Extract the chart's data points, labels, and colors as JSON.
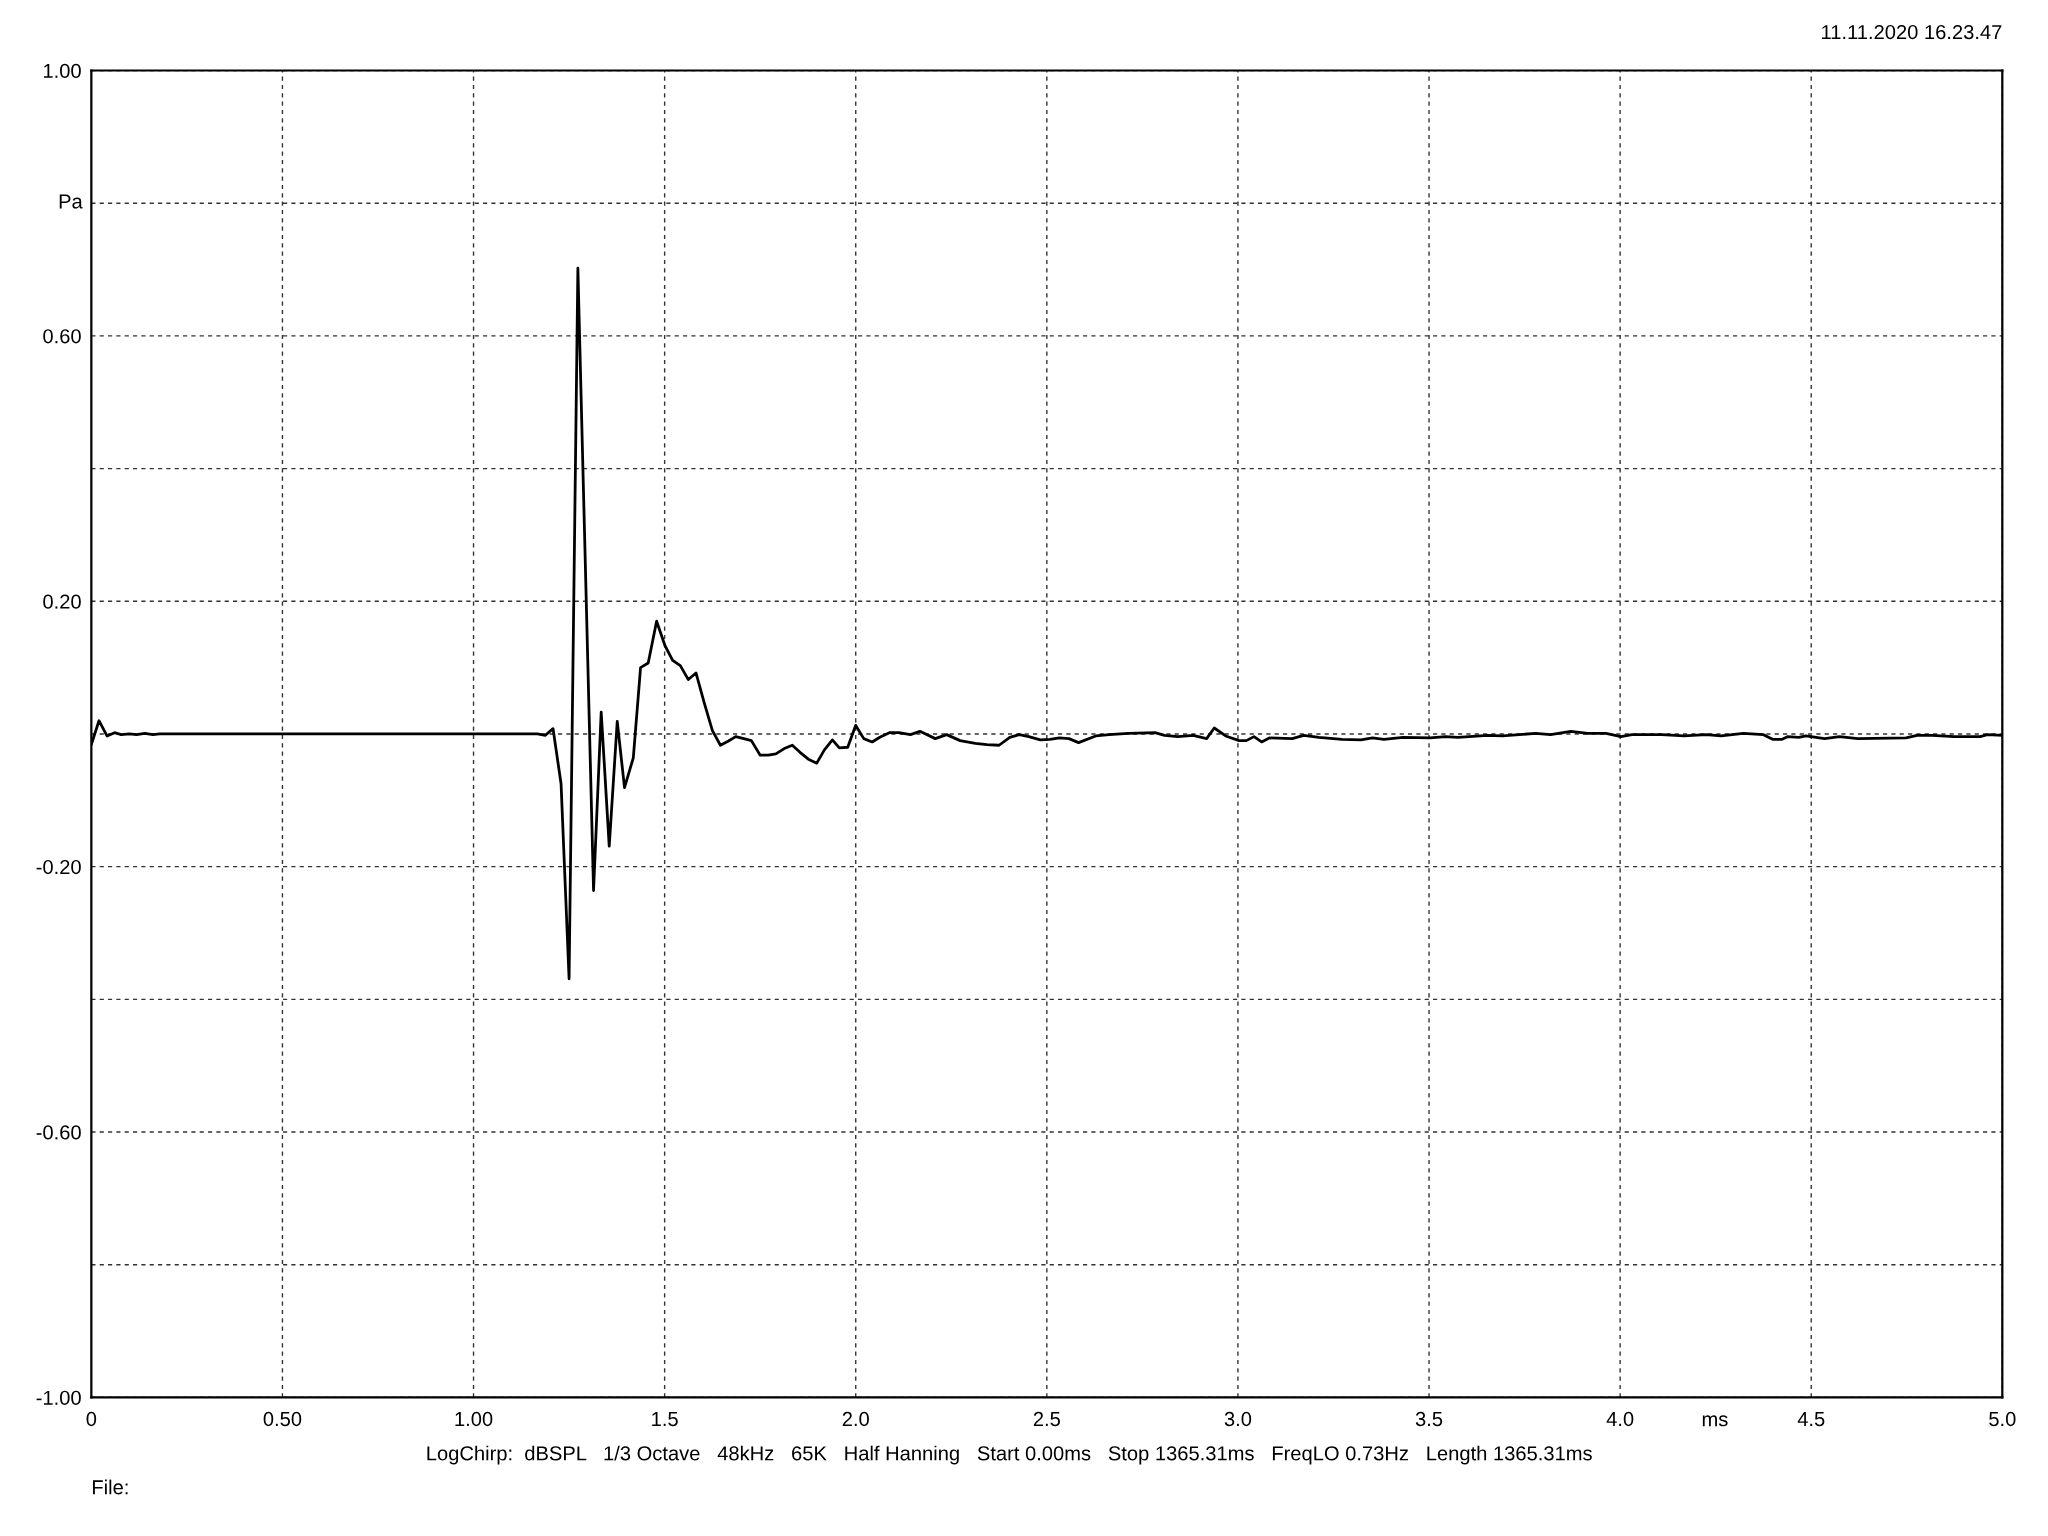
{
  "chart_data": {
    "type": "line",
    "xlabel": "ms",
    "ylabel": "Pa",
    "annotations": [
      "11.11.2020 16.23.47",
      "LogChirp:  dBSPL   1/3 Octave   48kHz   65K   Half Hanning   Start 0.00ms   Stop 1365.31ms   FreqLO 0.73Hz   Length 1365.31ms",
      "File:"
    ],
    "xlim": [
      0,
      5.0
    ],
    "ylim": [
      -1.0,
      1.0
    ],
    "xticks": [
      0,
      {
        "value": 0.5,
        "label": "0.50"
      },
      {
        "value": 1.0,
        "label": "1.00"
      },
      1.5,
      {
        "value": 2.0,
        "label": "2.0"
      },
      2.5,
      {
        "value": 3.0,
        "label": "3.0"
      },
      3.5,
      {
        "value": 4.0,
        "label": "4.0"
      },
      4.5,
      {
        "value": 5.0,
        "label": "5.0"
      }
    ],
    "yticks": [
      {
        "value": 1.0,
        "label": "1.00"
      },
      {
        "value": 0.8,
        "label": null
      },
      {
        "value": 0.6,
        "label": "0.60"
      },
      {
        "value": 0.4,
        "label": null
      },
      {
        "value": 0.2,
        "label": "0.20"
      },
      {
        "value": 0,
        "label": null
      },
      {
        "value": -0.2,
        "label": "-0.20"
      },
      {
        "value": -0.4,
        "label": null
      },
      {
        "value": -0.6,
        "label": "-0.60"
      },
      {
        "value": -0.8,
        "label": null
      },
      {
        "value": -1.0,
        "label": "-1.00"
      }
    ],
    "grid": true,
    "color": "#000000",
    "x": [
      0,
      0.02,
      0.041,
      0.061,
      0.078,
      0.1,
      0.118,
      0.14,
      0.161,
      0.179,
      1.167,
      1.188,
      1.208,
      1.229,
      1.25,
      1.273,
      1.314,
      1.334,
      1.355,
      1.376,
      1.395,
      1.418,
      1.437,
      1.457,
      1.479,
      1.501,
      1.521,
      1.541,
      1.562,
      1.582,
      1.604,
      1.625,
      1.646,
      1.666,
      1.686,
      1.707,
      1.727,
      1.75,
      1.771,
      1.791,
      1.813,
      1.834,
      1.855,
      1.876,
      1.898,
      1.918,
      1.939,
      1.957,
      1.979,
      2.0,
      2.021,
      2.043,
      2.063,
      2.088,
      2.113,
      2.143,
      2.168,
      2.208,
      2.238,
      2.273,
      2.313,
      2.343,
      2.375,
      2.403,
      2.428,
      2.453,
      2.483,
      2.508,
      2.533,
      2.558,
      2.583,
      2.628,
      2.663,
      2.713,
      2.783,
      2.808,
      2.843,
      2.883,
      2.918,
      2.938,
      2.968,
      3.003,
      3.022,
      3.042,
      3.062,
      3.082,
      3.142,
      3.172,
      3.212,
      3.272,
      3.322,
      3.352,
      3.382,
      3.432,
      3.503,
      3.543,
      3.576,
      3.653,
      3.692,
      3.779,
      3.818,
      3.871,
      3.915,
      3.963,
      4.002,
      4.031,
      4.109,
      4.167,
      4.225,
      4.264,
      4.322,
      4.375,
      4.399,
      4.424,
      4.438,
      4.467,
      4.486,
      4.535,
      4.574,
      4.622,
      4.748,
      4.777,
      4.816,
      4.874,
      4.942,
      4.961,
      5.0
    ],
    "values": [
      -0.016,
      0.02,
      -0.003,
      0.002,
      -0.001,
      0,
      -0.001,
      0.001,
      -0.001,
      0,
      0,
      -0.002,
      0.008,
      -0.075,
      -0.369,
      0.702,
      -0.236,
      0.033,
      -0.169,
      0.019,
      -0.081,
      -0.036,
      0.1,
      0.107,
      0.17,
      0.133,
      0.111,
      0.103,
      0.082,
      0.092,
      0.046,
      0.005,
      -0.017,
      -0.011,
      -0.004,
      -0.007,
      -0.01,
      -0.032,
      -0.032,
      -0.03,
      -0.022,
      -0.017,
      -0.028,
      -0.038,
      -0.044,
      -0.024,
      -0.009,
      -0.021,
      -0.02,
      0.013,
      -0.007,
      -0.012,
      -0.005,
      0.002,
      0.002,
      -0.001,
      0.004,
      -0.007,
      -0.001,
      -0.01,
      -0.014,
      -0.016,
      -0.017,
      -0.005,
      -0.001,
      -0.004,
      -0.009,
      -0.008,
      -0.006,
      -0.007,
      -0.013,
      -0.003,
      -0.001,
      0.001,
      0.002,
      -0.002,
      -0.004,
      -0.002,
      -0.007,
      0.009,
      -0.003,
      -0.01,
      -0.01,
      -0.004,
      -0.012,
      -0.006,
      -0.007,
      -0.002,
      -0.005,
      -0.008,
      -0.009,
      -0.006,
      -0.008,
      -0.005,
      -0.006,
      -0.004,
      -0.005,
      -0.002,
      -0.003,
      0.001,
      -0.001,
      0.004,
      0.001,
      0.001,
      -0.004,
      -0.001,
      -0.001,
      -0.003,
      -0.001,
      -0.003,
      0.001,
      -0.001,
      -0.008,
      -0.008,
      -0.004,
      -0.005,
      -0.003,
      -0.007,
      -0.004,
      -0.007,
      -0.006,
      -0.002,
      -0.002,
      -0.004,
      -0.004,
      -0.001,
      -0.002
    ]
  }
}
